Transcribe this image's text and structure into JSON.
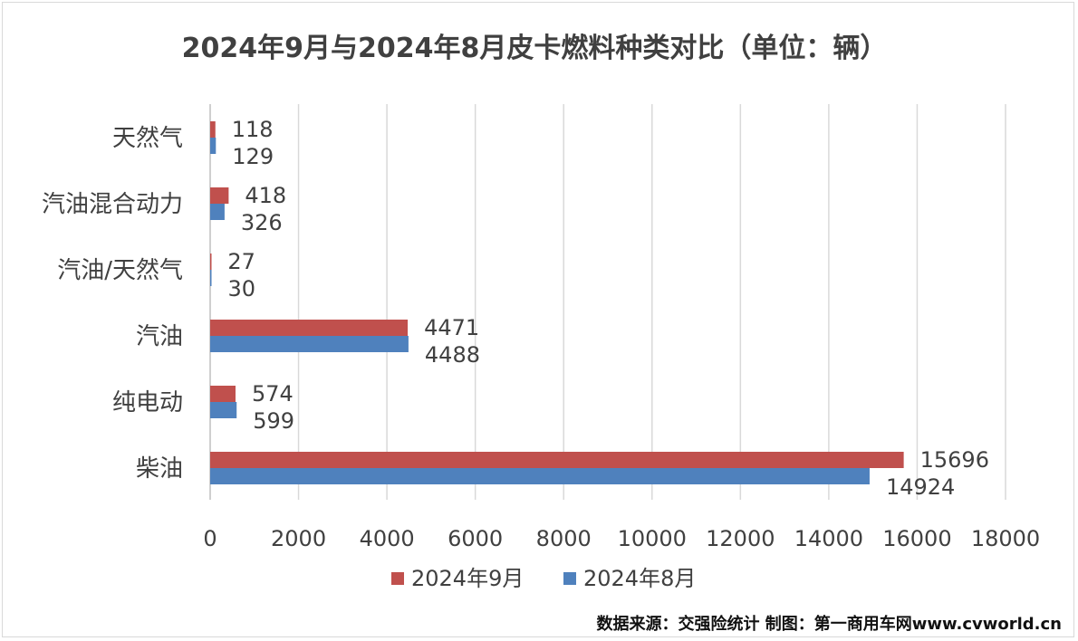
{
  "chart_data": {
    "type": "bar",
    "orientation": "horizontal",
    "title": "2024年9月与2024年8月皮卡燃料种类对比（单位：辆）",
    "categories": [
      "天然气",
      "汽油混合动力",
      "汽油/天然气",
      "汽油",
      "纯电动",
      "柴油"
    ],
    "series": [
      {
        "name": "2024年9月",
        "color": "#c0504d",
        "values": [
          118,
          418,
          27,
          4471,
          574,
          15696
        ]
      },
      {
        "name": "2024年8月",
        "color": "#4f81bd",
        "values": [
          129,
          326,
          30,
          4488,
          599,
          14924
        ]
      }
    ],
    "xlim": [
      0,
      18000
    ],
    "xticks": [
      0,
      2000,
      4000,
      6000,
      8000,
      10000,
      12000,
      14000,
      16000,
      18000
    ],
    "grid": true,
    "legend_position": "bottom"
  },
  "source_note": "数据来源：交强险统计 制图：第一商用车网www.cvworld.cn"
}
